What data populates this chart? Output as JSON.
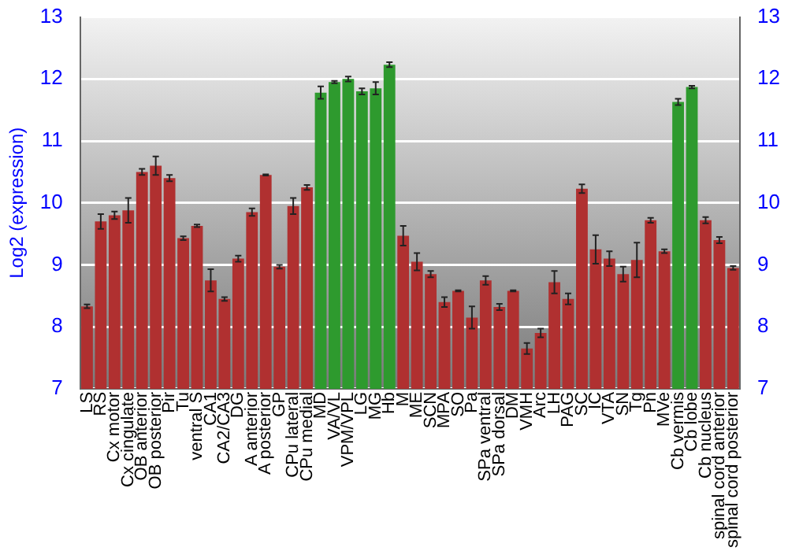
{
  "chart_data": {
    "type": "bar",
    "ylabel": "Log2 (expression)",
    "categories": [
      "LS",
      "RS",
      "Cx motor",
      "Cx cingulate",
      "OB anterior",
      "OB posterior",
      "Pir",
      "Tu",
      "ventral S",
      "CA1",
      "CA2/CA3",
      "DG",
      "A anterior",
      "A posterior",
      "GP",
      "CPu lateral",
      "CPu medial",
      "MD",
      "VA/VL",
      "VPM/VPL",
      "LG",
      "MG",
      "Hb",
      "M",
      "ME",
      "SCN",
      "MPA",
      "SO",
      "Pa",
      "SPa ventral",
      "SPa dorsal",
      "DM",
      "VMH",
      "Arc",
      "LH",
      "PAG",
      "SC",
      "IC",
      "VTA",
      "SN",
      "Tg",
      "Pn",
      "MVe",
      "Cb vermis",
      "Cb lobe",
      "Cb nucleus",
      "spinal cord anterior",
      "spinal cord posterior"
    ],
    "values": [
      8.33,
      9.7,
      9.8,
      9.88,
      10.5,
      10.6,
      10.4,
      9.43,
      9.63,
      8.75,
      8.45,
      9.1,
      9.85,
      10.45,
      8.97,
      9.95,
      10.25,
      11.78,
      11.95,
      12.0,
      11.8,
      11.85,
      12.23,
      9.47,
      9.05,
      8.85,
      8.4,
      8.58,
      8.15,
      8.75,
      8.32,
      8.58,
      7.65,
      7.9,
      8.72,
      8.45,
      10.23,
      9.25,
      9.1,
      8.85,
      9.08,
      9.72,
      9.22,
      11.63,
      11.87,
      9.72,
      9.4,
      8.95
    ],
    "errors": [
      0.03,
      0.12,
      0.06,
      0.2,
      0.05,
      0.15,
      0.05,
      0.03,
      0.02,
      0.18,
      0.03,
      0.05,
      0.06,
      0.01,
      0.03,
      0.13,
      0.04,
      0.1,
      0.02,
      0.04,
      0.05,
      0.1,
      0.04,
      0.16,
      0.14,
      0.05,
      0.08,
      0.01,
      0.18,
      0.07,
      0.05,
      0.01,
      0.09,
      0.07,
      0.18,
      0.09,
      0.07,
      0.23,
      0.12,
      0.12,
      0.28,
      0.04,
      0.03,
      0.05,
      0.02,
      0.05,
      0.05,
      0.03
    ],
    "colors": [
      "#b03030",
      "#b03030",
      "#b03030",
      "#b03030",
      "#b03030",
      "#b03030",
      "#b03030",
      "#b03030",
      "#b03030",
      "#b03030",
      "#b03030",
      "#b03030",
      "#b03030",
      "#b03030",
      "#b03030",
      "#b03030",
      "#b03030",
      "#2e9a2e",
      "#2e9a2e",
      "#2e9a2e",
      "#2e9a2e",
      "#2e9a2e",
      "#2e9a2e",
      "#b03030",
      "#b03030",
      "#b03030",
      "#b03030",
      "#b03030",
      "#b03030",
      "#b03030",
      "#b03030",
      "#b03030",
      "#b03030",
      "#b03030",
      "#b03030",
      "#b03030",
      "#b03030",
      "#b03030",
      "#b03030",
      "#b03030",
      "#b03030",
      "#b03030",
      "#b03030",
      "#2e9a2e",
      "#2e9a2e",
      "#b03030",
      "#b03030",
      "#b03030"
    ],
    "ylim": [
      7,
      13
    ],
    "yticks": [
      7,
      8,
      9,
      10,
      11,
      12,
      13
    ],
    "y2lim": [
      7,
      13
    ],
    "y2ticks": [
      7,
      8,
      9,
      10,
      11,
      12,
      13
    ],
    "grid": "y",
    "legend": false
  }
}
